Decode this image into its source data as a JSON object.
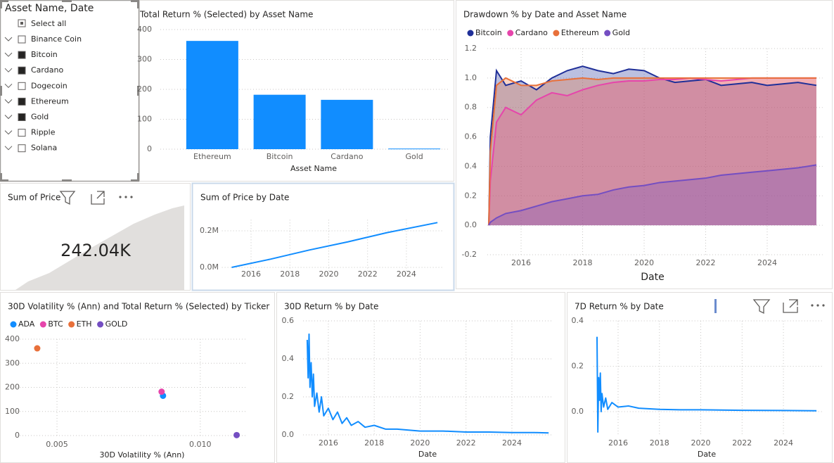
{
  "slicer": {
    "title": "Asset Name, Date",
    "select_all": "Select all",
    "items": [
      {
        "label": "Binance Coin",
        "checked": false
      },
      {
        "label": "Bitcoin",
        "checked": true
      },
      {
        "label": "Cardano",
        "checked": true
      },
      {
        "label": "Dogecoin",
        "checked": false
      },
      {
        "label": "Ethereum",
        "checked": true
      },
      {
        "label": "Gold",
        "checked": true
      },
      {
        "label": "Ripple",
        "checked": false
      },
      {
        "label": "Solana",
        "checked": false
      }
    ]
  },
  "card": {
    "title": "Sum of Price",
    "value": "242.04K"
  },
  "chart_data": [
    {
      "type": "bar",
      "title": "Total Return % (Selected) by Asset Name",
      "x_label": "Asset Name",
      "categories": [
        "Ethereum",
        "Bitcoin",
        "Cardano",
        "Gold"
      ],
      "values": [
        362,
        182,
        165,
        2
      ],
      "color": "#118dff",
      "ylim": [
        0,
        400
      ],
      "yticks": [
        0,
        100,
        200,
        300,
        400
      ],
      "grid": true
    },
    {
      "type": "area",
      "title": "Drawdown % by Date and Asset Name",
      "x_label": "Date",
      "x": [
        2014.95,
        2015.0,
        2015.2,
        2015.5,
        2016,
        2016.5,
        2017,
        2017.5,
        2018,
        2018.5,
        2019,
        2019.5,
        2020,
        2020.5,
        2021,
        2021.5,
        2022,
        2022.5,
        2023,
        2023.5,
        2024,
        2024.5,
        2025,
        2025.6
      ],
      "series": [
        {
          "name": "Bitcoin",
          "color": "#1f2f98",
          "values": [
            0,
            0.6,
            1.05,
            0.95,
            0.98,
            0.92,
            1.0,
            1.05,
            1.08,
            1.05,
            1.03,
            1.06,
            1.05,
            1.0,
            0.97,
            0.98,
            0.99,
            0.95,
            0.96,
            0.97,
            0.95,
            0.96,
            0.97,
            0.95
          ]
        },
        {
          "name": "Cardano",
          "color": "#e645ab",
          "values": [
            0,
            0.3,
            0.7,
            0.8,
            0.75,
            0.85,
            0.9,
            0.88,
            0.92,
            0.95,
            0.97,
            0.98,
            0.98,
            0.99,
            0.99,
            1.0,
            0.99,
            0.98,
            0.99,
            1.0,
            1.0,
            1.0,
            1.0,
            1.0
          ]
        },
        {
          "name": "Ethereum",
          "color": "#e8703a",
          "values": [
            0,
            0.5,
            0.95,
            1.0,
            0.95,
            0.95,
            0.98,
            0.99,
            1.0,
            0.99,
            1.0,
            1.0,
            1.0,
            1.0,
            1.0,
            1.0,
            1.0,
            1.0,
            1.0,
            1.0,
            1.0,
            1.0,
            1.0,
            1.0
          ]
        },
        {
          "name": "Gold",
          "color": "#744ec2",
          "values": [
            0,
            0.02,
            0.05,
            0.08,
            0.1,
            0.13,
            0.16,
            0.18,
            0.2,
            0.21,
            0.24,
            0.26,
            0.27,
            0.29,
            0.3,
            0.31,
            0.32,
            0.34,
            0.35,
            0.36,
            0.37,
            0.38,
            0.39,
            0.41
          ]
        }
      ],
      "xlim": [
        2014.9,
        2025.8
      ],
      "xticks": [
        2016,
        2018,
        2020,
        2022,
        2024
      ],
      "ylim": [
        -0.2,
        1.2
      ],
      "yticks": [
        -0.2,
        {
          "value": 0,
          "label": "0.0"
        },
        0.2,
        0.4,
        0.6,
        0.8,
        {
          "value": 1,
          "label": "1.0"
        },
        1.2
      ],
      "grid": true,
      "legend": "top-left"
    },
    {
      "type": "line",
      "title": "Sum of Price by Date",
      "x": [
        2015,
        2017,
        2019,
        2021,
        2023,
        2025.6
      ],
      "series": [
        {
          "color": "#118dff",
          "values": [
            0,
            45000,
            95000,
            140000,
            190000,
            245000
          ]
        }
      ],
      "xlim": [
        2014.5,
        2025.9
      ],
      "xticks": [
        2016,
        2018,
        2020,
        2022,
        2024
      ],
      "ylim": [
        -40000,
        260000
      ],
      "yticks": [
        {
          "value": 0,
          "label": "0.0M"
        },
        {
          "value": 200000,
          "label": "0.2M"
        }
      ],
      "grid": true
    },
    {
      "type": "scatter",
      "title": "30D Volatility % (Ann) and Total Return % (Selected) by Ticker",
      "x_label": "30D Volatility % (Ann)",
      "series": [
        {
          "name": "ADA",
          "color": "#118dff",
          "x": [
            0.0087
          ],
          "values": [
            165
          ]
        },
        {
          "name": "BTC",
          "color": "#e645ab",
          "x": [
            0.00865
          ],
          "values": [
            182
          ]
        },
        {
          "name": "ETH",
          "color": "#e8703a",
          "x": [
            0.00431
          ],
          "values": [
            362
          ]
        },
        {
          "name": "GOLD",
          "color": "#744ec2",
          "x": [
            0.01127
          ],
          "values": [
            2
          ]
        }
      ],
      "xlim": [
        0.0036,
        0.0116
      ],
      "xticks": [
        0.005,
        {
          "value": 0.01,
          "label": "0.010"
        }
      ],
      "ylim": [
        0,
        400
      ],
      "yticks": [
        0,
        100,
        200,
        300,
        400
      ],
      "grid": true,
      "legend": "top-left"
    },
    {
      "type": "line",
      "title": "30D Return % by Date",
      "x_label": "Date",
      "x": [
        2015.08,
        2015.12,
        2015.16,
        2015.2,
        2015.25,
        2015.3,
        2015.35,
        2015.4,
        2015.5,
        2015.6,
        2015.7,
        2015.8,
        2016,
        2016.2,
        2016.4,
        2016.6,
        2016.8,
        2017,
        2017.3,
        2017.6,
        2018,
        2018.5,
        2019,
        2019.5,
        2020,
        2021,
        2022,
        2023,
        2024,
        2025,
        2025.6
      ],
      "series": [
        {
          "color": "#118dff",
          "values": [
            0.5,
            0.3,
            0.53,
            0.25,
            0.38,
            0.2,
            0.32,
            0.15,
            0.22,
            0.12,
            0.2,
            0.1,
            0.14,
            0.08,
            0.12,
            0.06,
            0.09,
            0.05,
            0.07,
            0.04,
            0.05,
            0.03,
            0.03,
            0.025,
            0.02,
            0.02,
            0.015,
            0.015,
            0.012,
            0.012,
            0.01
          ]
        }
      ],
      "xlim": [
        2014.9,
        2025.8
      ],
      "xticks": [
        2016,
        2018,
        2020,
        2022,
        2024
      ],
      "ylim": [
        0,
        0.6
      ],
      "yticks": [
        {
          "value": 0,
          "label": "0.0"
        },
        0.2,
        0.4,
        0.6
      ],
      "grid": true
    },
    {
      "type": "line",
      "title": "7D Return % by Date",
      "x_label": "Date",
      "x": [
        2014.98,
        2015.02,
        2015.06,
        2015.1,
        2015.14,
        2015.18,
        2015.22,
        2015.3,
        2015.4,
        2015.5,
        2015.7,
        2016,
        2016.5,
        2017,
        2018,
        2019,
        2020,
        2022,
        2024,
        2025.6
      ],
      "series": [
        {
          "color": "#118dff",
          "values": [
            0.33,
            -0.09,
            0.15,
            0.05,
            0.17,
            0.0,
            0.08,
            0.02,
            0.06,
            0.01,
            0.04,
            0.02,
            0.025,
            0.015,
            0.01,
            0.008,
            0.008,
            0.006,
            0.005,
            0.004
          ]
        }
      ],
      "xlim": [
        2014.8,
        2025.9
      ],
      "xticks": [
        2016,
        2018,
        2020,
        2022,
        2024
      ],
      "ylim": [
        -0.1,
        0.4
      ],
      "yticks": [
        {
          "value": 0,
          "label": "0.0"
        },
        0.2,
        0.4
      ],
      "grid": true
    }
  ]
}
